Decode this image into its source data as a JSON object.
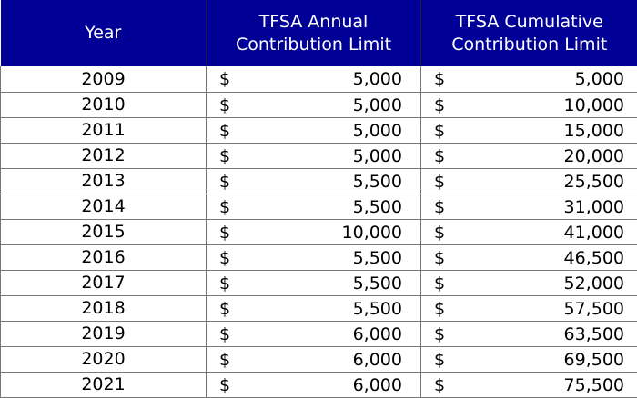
{
  "table": {
    "header_color": "#000096",
    "headers": [
      "Year",
      "TFSA Annual Contribution Limit",
      "TFSA Cumulative Contribution Limit"
    ],
    "header_lines": [
      [
        "Year"
      ],
      [
        "TFSA Annual",
        "Contribution Limit"
      ],
      [
        "TFSA Cumulative",
        "Contribution Limit"
      ]
    ],
    "currency_symbol": "$",
    "rows": [
      {
        "year": "2009",
        "annual": "5,000",
        "cumulative": "5,000"
      },
      {
        "year": "2010",
        "annual": "5,000",
        "cumulative": "10,000"
      },
      {
        "year": "2011",
        "annual": "5,000",
        "cumulative": "15,000"
      },
      {
        "year": "2012",
        "annual": "5,000",
        "cumulative": "20,000"
      },
      {
        "year": "2013",
        "annual": "5,500",
        "cumulative": "25,500"
      },
      {
        "year": "2014",
        "annual": "5,500",
        "cumulative": "31,000"
      },
      {
        "year": "2015",
        "annual": "10,000",
        "cumulative": "41,000"
      },
      {
        "year": "2016",
        "annual": "5,500",
        "cumulative": "46,500"
      },
      {
        "year": "2017",
        "annual": "5,500",
        "cumulative": "52,000"
      },
      {
        "year": "2018",
        "annual": "5,500",
        "cumulative": "57,500"
      },
      {
        "year": "2019",
        "annual": "6,000",
        "cumulative": "63,500"
      },
      {
        "year": "2020",
        "annual": "6,000",
        "cumulative": "69,500"
      },
      {
        "year": "2021",
        "annual": "6,000",
        "cumulative": "75,500"
      }
    ]
  }
}
